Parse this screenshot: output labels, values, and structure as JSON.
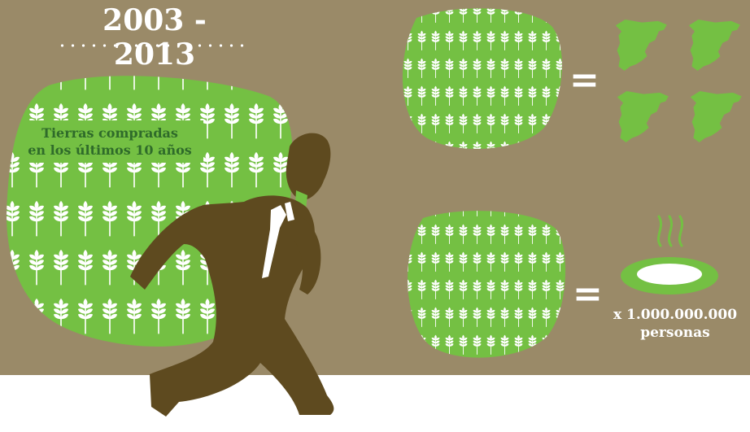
{
  "header": {
    "years": "2003 - 2013"
  },
  "big_field": {
    "label_line1": "Tierras compradas",
    "label_line2": "en los últimos 10 años"
  },
  "equivalences": {
    "equals_top": "=",
    "equals_bottom": "=",
    "people_line1": "x 1.000.000.000",
    "people_line2": "personas"
  },
  "colors": {
    "background": "#9a8a68",
    "field_green": "#74c043",
    "man_brown": "#5e4a1f",
    "label_green": "#2f6b2a",
    "floor": "#ffffff"
  },
  "icons": [
    "wheat-icon",
    "spain-map-icon",
    "soup-plate-icon",
    "businessman-icon"
  ]
}
